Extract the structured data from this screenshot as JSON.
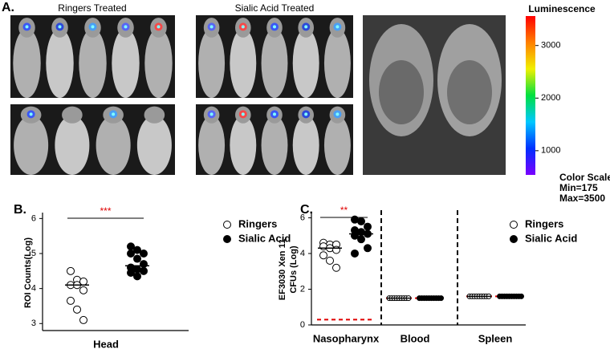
{
  "panel_a": {
    "label": "A.",
    "group_titles": [
      "Ringers Treated",
      "Sialic Acid Treated"
    ],
    "colorbar": {
      "title": "Luminescence",
      "lim": [
        540,
        3560
      ],
      "ticks": [
        1000,
        2000,
        3000
      ],
      "colors": [
        "#7a00ff",
        "#0030ff",
        "#00c8ff",
        "#00e040",
        "#f0f000",
        "#ff8000",
        "#ff0000"
      ],
      "notes": [
        "Color Scale",
        "Min=175",
        "Max=3500"
      ]
    }
  },
  "chart_data": [
    {
      "type": "scatter",
      "label": "B.",
      "y_label": [
        "ROI Counts(Log)"
      ],
      "categories": [
        "Head"
      ],
      "ylim": [
        2.8,
        6.1
      ],
      "yticks": [
        3,
        4,
        5,
        6
      ],
      "series": [
        {
          "name": "Ringers",
          "color": "#000000",
          "marker": "open",
          "values": [
            [
              4.5,
              4.25,
              4.2,
              4.1,
              4.1,
              3.95,
              3.65,
              3.4,
              3.1
            ]
          ],
          "means": [
            4.1
          ]
        },
        {
          "name": "Sialic Acid",
          "color": "#000000",
          "marker": "filled",
          "values": [
            [
              5.2,
              5.1,
              5.0,
              5.0,
              4.85,
              4.7,
              4.6,
              4.55,
              4.5,
              4.45,
              4.35
            ]
          ],
          "means": [
            4.65
          ]
        }
      ],
      "annotations": [
        {
          "text": "***",
          "color": "#e00000",
          "category": 0
        }
      ]
    },
    {
      "type": "scatter",
      "label": "C.",
      "y_label": [
        "EF3030 Xen 11",
        "CFUs (Log)"
      ],
      "categories": [
        "Nasopharynx",
        "Blood",
        "Spleen"
      ],
      "ylim": [
        0,
        6.2
      ],
      "yticks": [
        0,
        2,
        4,
        6
      ],
      "series": [
        {
          "name": "Ringers",
          "color": "#000000",
          "marker": "open",
          "values": [
            [
              4.6,
              4.5,
              4.5,
              4.4,
              4.3,
              4.2,
              3.9,
              3.6,
              3.2
            ],
            [
              1.5,
              1.5,
              1.5,
              1.5,
              1.5,
              1.5,
              1.5,
              1.5,
              1.5
            ],
            [
              1.6,
              1.6,
              1.6,
              1.6,
              1.6,
              1.6,
              1.6,
              1.6,
              1.6
            ]
          ],
          "means": [
            4.3,
            1.5,
            1.6
          ]
        },
        {
          "name": "Sialic Acid",
          "color": "#000000",
          "marker": "filled",
          "values": [
            [
              5.9,
              5.8,
              5.5,
              5.3,
              5.2,
              5.1,
              5.0,
              4.8,
              4.3,
              4.0
            ],
            [
              1.5,
              1.5,
              1.5,
              1.5,
              1.5,
              1.5,
              1.5,
              1.5,
              1.5,
              1.5
            ],
            [
              1.6,
              1.6,
              1.6,
              1.6,
              1.6,
              1.6,
              1.6,
              1.6,
              1.6,
              1.6
            ]
          ],
          "means": [
            5.1,
            1.5,
            1.6
          ]
        }
      ],
      "limit_lines": {
        "color": "#e00000",
        "values": [
          0.3,
          1.5,
          1.6
        ]
      },
      "annotations": [
        {
          "text": "**",
          "color": "#e00000",
          "category": 0
        }
      ]
    }
  ]
}
